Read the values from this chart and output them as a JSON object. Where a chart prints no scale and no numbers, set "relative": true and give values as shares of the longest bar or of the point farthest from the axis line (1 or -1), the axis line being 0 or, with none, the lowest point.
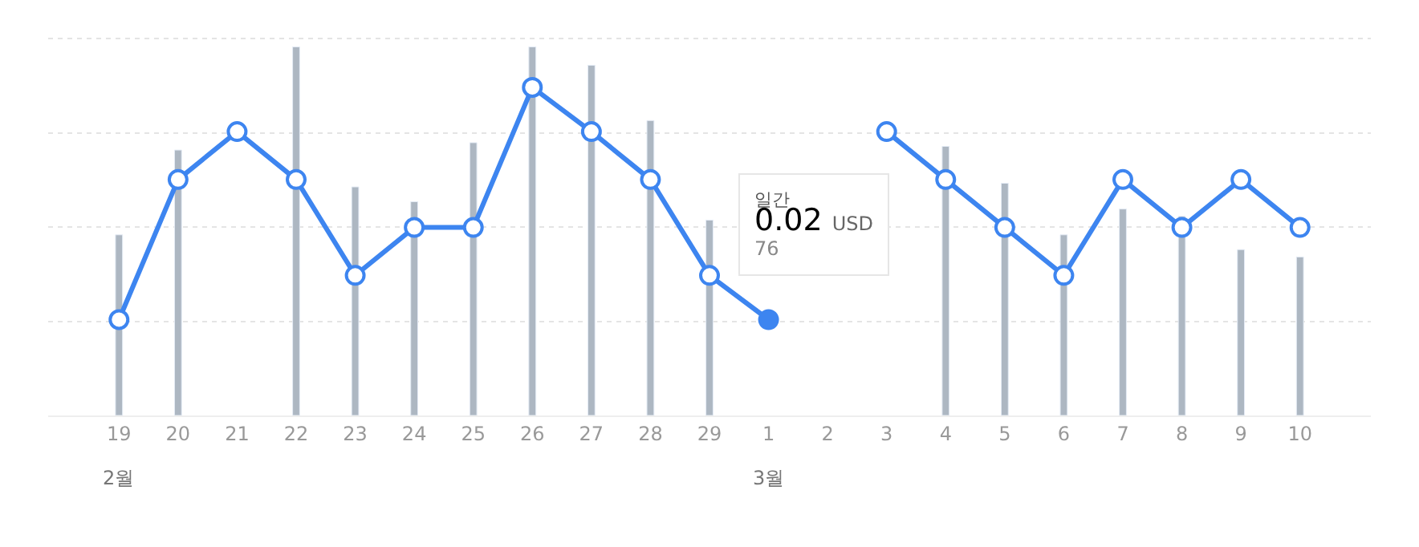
{
  "chart_data": {
    "type": "bar",
    "relative": true,
    "categories": [
      "19",
      "20",
      "21",
      "22",
      "23",
      "24",
      "25",
      "26",
      "27",
      "28",
      "29",
      "1",
      "2",
      "3",
      "4",
      "5",
      "6",
      "7",
      "8",
      "9",
      "10"
    ],
    "series": [
      {
        "color": "#adb7c2",
        "values": [
          0.49,
          0.72,
          null,
          1.0,
          0.62,
          0.58,
          0.74,
          1.0,
          0.95,
          0.8,
          0.53,
          null,
          null,
          null,
          0.73,
          0.63,
          0.49,
          0.56,
          0.54,
          0.45,
          0.43
        ]
      },
      {
        "type": "line",
        "color": "#3d85f0",
        "marker": "circle",
        "line_style": "solid",
        "values": [
          0.26,
          0.64,
          0.77,
          0.64,
          0.38,
          0.51,
          0.51,
          0.89,
          0.77,
          0.64,
          0.38,
          0.26,
          null,
          0.77,
          0.64,
          0.51,
          0.38,
          0.64,
          0.51,
          0.64,
          0.51
        ]
      }
    ],
    "annotations": [
      "2월",
      "3월",
      "일간",
      "0.02 USD",
      "76"
    ],
    "grid": "y"
  }
}
